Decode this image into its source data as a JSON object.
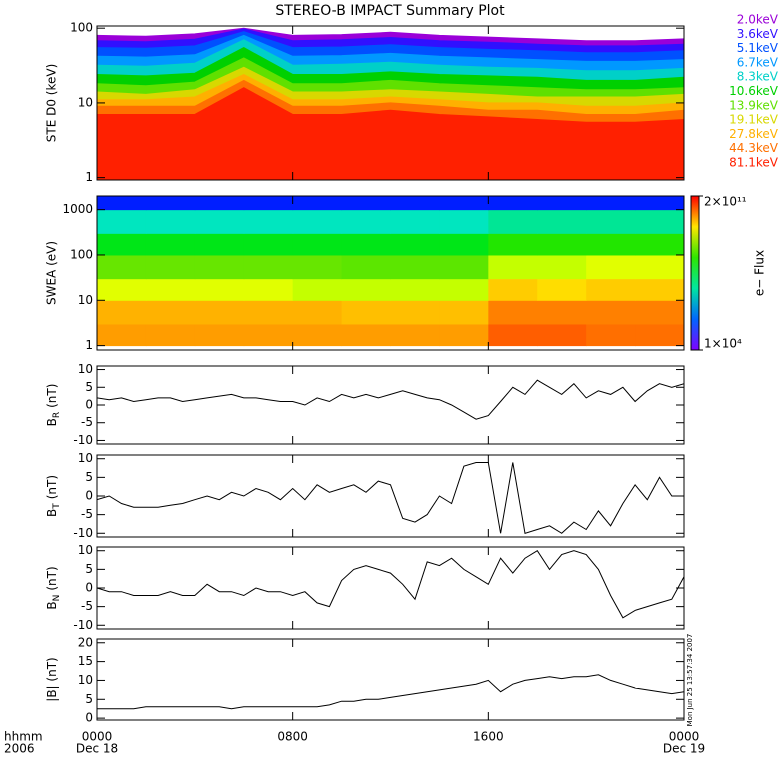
{
  "title": "STEREO-B IMPACT Summary Plot",
  "x_axis": {
    "xlim": [
      0,
      24
    ],
    "xticks": [
      {
        "value": 0,
        "label": "0000"
      },
      {
        "value": 8,
        "label": "0800"
      },
      {
        "value": 16,
        "label": "1600"
      },
      {
        "value": 24,
        "label": "0000"
      }
    ],
    "dates": [
      {
        "value": 0,
        "label": "Dec 18"
      },
      {
        "value": 24,
        "label": "Dec 19"
      }
    ],
    "time_label": "hhmm",
    "year_label": "2006"
  },
  "timestamp": "Mon Jun 25 13:57:34 2007",
  "chart_data": [
    {
      "type": "area",
      "ylabel": "STE D0 (keV)",
      "log": true,
      "ylim": [
        0.93,
        107
      ],
      "yticks": [
        1,
        10,
        100
      ],
      "x": [
        0,
        2,
        4,
        6,
        8,
        10,
        12,
        14,
        16,
        18,
        20,
        22,
        24
      ],
      "series": [
        {
          "name": "2.0keV",
          "color": "#9a00d8",
          "values": [
            80,
            78,
            84,
            100,
            80,
            82,
            88,
            80,
            76,
            72,
            68,
            68,
            72
          ]
        },
        {
          "name": "3.6keV",
          "color": "#3010ff",
          "values": [
            68,
            66,
            71,
            98,
            68,
            70,
            75,
            68,
            65,
            61,
            58,
            58,
            61
          ]
        },
        {
          "name": "5.1keV",
          "color": "#0050ff",
          "values": [
            55,
            54,
            58,
            90,
            55,
            56,
            60,
            55,
            52,
            50,
            47,
            47,
            50
          ]
        },
        {
          "name": "6.7keV",
          "color": "#0098ff",
          "values": [
            42,
            41,
            44,
            80,
            42,
            43,
            46,
            42,
            40,
            38,
            36,
            36,
            38
          ]
        },
        {
          "name": "8.3keV",
          "color": "#00d0c8",
          "values": [
            32,
            31,
            34,
            70,
            32,
            33,
            35,
            32,
            30,
            29,
            27,
            27,
            29
          ]
        },
        {
          "name": "10.6keV",
          "color": "#00d000",
          "values": [
            24,
            23,
            25,
            55,
            24,
            24,
            26,
            24,
            23,
            22,
            20,
            20,
            22
          ]
        },
        {
          "name": "13.9keV",
          "color": "#60e000",
          "values": [
            18,
            17,
            19,
            40,
            18,
            18,
            20,
            18,
            17,
            16,
            15,
            15,
            16
          ]
        },
        {
          "name": "19.1keV",
          "color": "#d8d800",
          "values": [
            14,
            13,
            15,
            30,
            14,
            14,
            15,
            14,
            13,
            12,
            12,
            12,
            13
          ]
        },
        {
          "name": "27.8keV",
          "color": "#ffb000",
          "values": [
            11,
            11,
            12,
            24,
            11,
            11,
            12,
            11,
            10,
            10,
            9,
            9,
            10
          ]
        },
        {
          "name": "44.3keV",
          "color": "#ff7000",
          "values": [
            9,
            9,
            9,
            20,
            9,
            9,
            10,
            9,
            8,
            8,
            7,
            7,
            8
          ]
        },
        {
          "name": "81.1keV",
          "color": "#ff2000",
          "values": [
            7,
            7,
            7,
            16,
            7,
            7,
            8,
            7,
            6.5,
            6,
            5.5,
            5.5,
            6
          ]
        }
      ]
    },
    {
      "type": "heatmap",
      "ylabel": "SWEA (eV)",
      "log": true,
      "ylim": [
        0.8,
        2000
      ],
      "yticks": [
        1,
        10,
        100,
        1000
      ],
      "x_edges": [
        0,
        2,
        4,
        6,
        8,
        10,
        12,
        14,
        16,
        18,
        20,
        22,
        24
      ],
      "y_edges": [
        1,
        3,
        10,
        30,
        100,
        300,
        1000,
        2000
      ],
      "values": [
        [
          20000000000.0,
          20000000000.0,
          20000000000.0,
          20000000000.0,
          20000000000.0,
          20000000000.0,
          20000000000.0,
          20000000000.0,
          50000000000.0,
          50000000000.0,
          40000000000.0,
          40000000000.0
        ],
        [
          15000000000.0,
          15000000000.0,
          15000000000.0,
          15000000000.0,
          15000000000.0,
          12000000000.0,
          12000000000.0,
          12000000000.0,
          30000000000.0,
          30000000000.0,
          30000000000.0,
          30000000000.0
        ],
        [
          3000000000.0,
          3000000000.0,
          3000000000.0,
          3000000000.0,
          2000000000.0,
          2000000000.0,
          2000000000.0,
          2000000000.0,
          10000000000.0,
          8000000000.0,
          10000000000.0,
          10000000000.0
        ],
        [
          600000000.0,
          600000000.0,
          600000000.0,
          600000000.0,
          600000000.0,
          500000000.0,
          500000000.0,
          500000000.0,
          2000000000.0,
          2000000000.0,
          3000000000.0,
          3000000000.0
        ],
        [
          80000000.0,
          80000000.0,
          80000000.0,
          80000000.0,
          80000000.0,
          80000000.0,
          80000000.0,
          80000000.0,
          200000000.0,
          200000000.0,
          200000000.0,
          200000000.0
        ],
        [
          5000000.0,
          5000000.0,
          5000000.0,
          5000000.0,
          5000000.0,
          5000000.0,
          5000000.0,
          5000000.0,
          10000000.0,
          10000000.0,
          10000000.0,
          10000000.0
        ],
        [
          100000.0,
          100000.0,
          100000.0,
          100000.0,
          100000.0,
          100000.0,
          100000.0,
          100000.0,
          100000.0,
          100000.0,
          100000.0,
          100000.0
        ]
      ],
      "colorbar": {
        "label": "e− Flux",
        "log": true,
        "lim": [
          10000.0,
          200000000000.0
        ],
        "ticks": [
          {
            "value": 200000000000,
            "label": "2×10¹¹"
          },
          {
            "value": 10000,
            "label": "1×10⁴"
          }
        ]
      }
    },
    {
      "type": "line",
      "ylabel": {
        "main": "B",
        "sub": "R",
        "unit": "(nT)"
      },
      "color": "#000000",
      "ylim": [
        -11,
        11
      ],
      "yticks": [
        -10,
        -5,
        0,
        5,
        10
      ],
      "x": [
        0,
        0.5,
        1,
        1.5,
        2,
        2.5,
        3,
        3.5,
        4,
        4.5,
        5,
        5.5,
        6,
        6.5,
        7,
        7.5,
        8,
        8.5,
        9,
        9.5,
        10,
        10.5,
        11,
        11.5,
        12,
        12.5,
        13,
        13.5,
        14,
        14.5,
        15,
        15.5,
        16,
        16.5,
        17,
        17.5,
        18,
        18.5,
        19,
        19.5,
        20,
        20.5,
        21,
        21.5,
        22,
        22.5,
        23,
        23.5,
        24
      ],
      "values": [
        2,
        1.5,
        2,
        1,
        1.5,
        2,
        2,
        1,
        1.5,
        2,
        2.5,
        3,
        2,
        2,
        1.5,
        1,
        1,
        0,
        2,
        1,
        3,
        2,
        3,
        2,
        3,
        4,
        3,
        2,
        1.5,
        0,
        -2,
        -4,
        -3,
        1,
        5,
        3,
        7,
        5,
        3,
        6,
        2,
        4,
        3,
        5,
        1,
        4,
        6,
        5,
        6
      ]
    },
    {
      "type": "line",
      "ylabel": {
        "main": "B",
        "sub": "T",
        "unit": "(nT)"
      },
      "color": "#000000",
      "ylim": [
        -11,
        11
      ],
      "yticks": [
        -10,
        -5,
        0,
        5,
        10
      ],
      "x": [
        0,
        0.5,
        1,
        1.5,
        2,
        2.5,
        3,
        3.5,
        4,
        4.5,
        5,
        5.5,
        6,
        6.5,
        7,
        7.5,
        8,
        8.5,
        9,
        9.5,
        10,
        10.5,
        11,
        11.5,
        12,
        12.5,
        13,
        13.5,
        14,
        14.5,
        15,
        15.5,
        16,
        16.5,
        17,
        17.5,
        18,
        18.5,
        19,
        19.5,
        20,
        20.5,
        21,
        21.5,
        22,
        22.5,
        23,
        23.5,
        24
      ],
      "values": [
        -1,
        0,
        -2,
        -3,
        -3,
        -3,
        -2.5,
        -2,
        -1,
        0,
        -1,
        1,
        0,
        2,
        1,
        -1,
        2,
        -1,
        3,
        1,
        2,
        3,
        1,
        4,
        3,
        -6,
        -7,
        -5,
        0,
        -2,
        8,
        9,
        9,
        -10,
        9,
        -10,
        -9,
        -8,
        -10,
        -7,
        -9,
        -4,
        -8,
        -2,
        3,
        -1,
        5,
        0,
        0
      ]
    },
    {
      "type": "line",
      "ylabel": {
        "main": "B",
        "sub": "N",
        "unit": "(nT)"
      },
      "color": "#000000",
      "ylim": [
        -11,
        11
      ],
      "yticks": [
        -10,
        -5,
        0,
        5,
        10
      ],
      "x": [
        0,
        0.5,
        1,
        1.5,
        2,
        2.5,
        3,
        3.5,
        4,
        4.5,
        5,
        5.5,
        6,
        6.5,
        7,
        7.5,
        8,
        8.5,
        9,
        9.5,
        10,
        10.5,
        11,
        11.5,
        12,
        12.5,
        13,
        13.5,
        14,
        14.5,
        15,
        15.5,
        16,
        16.5,
        17,
        17.5,
        18,
        18.5,
        19,
        19.5,
        20,
        20.5,
        21,
        21.5,
        22,
        22.5,
        23,
        23.5,
        24
      ],
      "values": [
        0,
        -1,
        -1,
        -2,
        -2,
        -2,
        -1,
        -2,
        -2,
        1,
        -1,
        -1,
        -2,
        0,
        -1,
        -1,
        -2,
        -1,
        -4,
        -5,
        2,
        5,
        6,
        5,
        4,
        1,
        -3,
        7,
        6,
        8,
        5,
        3,
        1,
        8,
        4,
        8,
        10,
        5,
        9,
        10,
        9,
        5,
        -2,
        -8,
        -6,
        -5,
        -4,
        -3,
        3
      ]
    },
    {
      "type": "line",
      "ylabel": {
        "main": "|B| (nT)"
      },
      "color": "#000000",
      "ylim": [
        -0.5,
        21
      ],
      "yticks": [
        0,
        5,
        10,
        15,
        20
      ],
      "x": [
        0,
        0.5,
        1,
        1.5,
        2,
        2.5,
        3,
        3.5,
        4,
        4.5,
        5,
        5.5,
        6,
        6.5,
        7,
        7.5,
        8,
        8.5,
        9,
        9.5,
        10,
        10.5,
        11,
        11.5,
        12,
        12.5,
        13,
        13.5,
        14,
        14.5,
        15,
        15.5,
        16,
        16.5,
        17,
        17.5,
        18,
        18.5,
        19,
        19.5,
        20,
        20.5,
        21,
        21.5,
        22,
        22.5,
        23,
        23.5,
        24
      ],
      "values": [
        2.5,
        2.5,
        2.5,
        2.5,
        3,
        3,
        3,
        3,
        3,
        3,
        3,
        2.5,
        3,
        3,
        3,
        3,
        3,
        3,
        3,
        3.5,
        4.5,
        4.5,
        5,
        5,
        5.5,
        6,
        6.5,
        7,
        7.5,
        8,
        8.5,
        9,
        10,
        7,
        9,
        10,
        10.5,
        11,
        10.5,
        11,
        11,
        11.5,
        10,
        9,
        8,
        7.5,
        7,
        6.5,
        7
      ]
    }
  ]
}
